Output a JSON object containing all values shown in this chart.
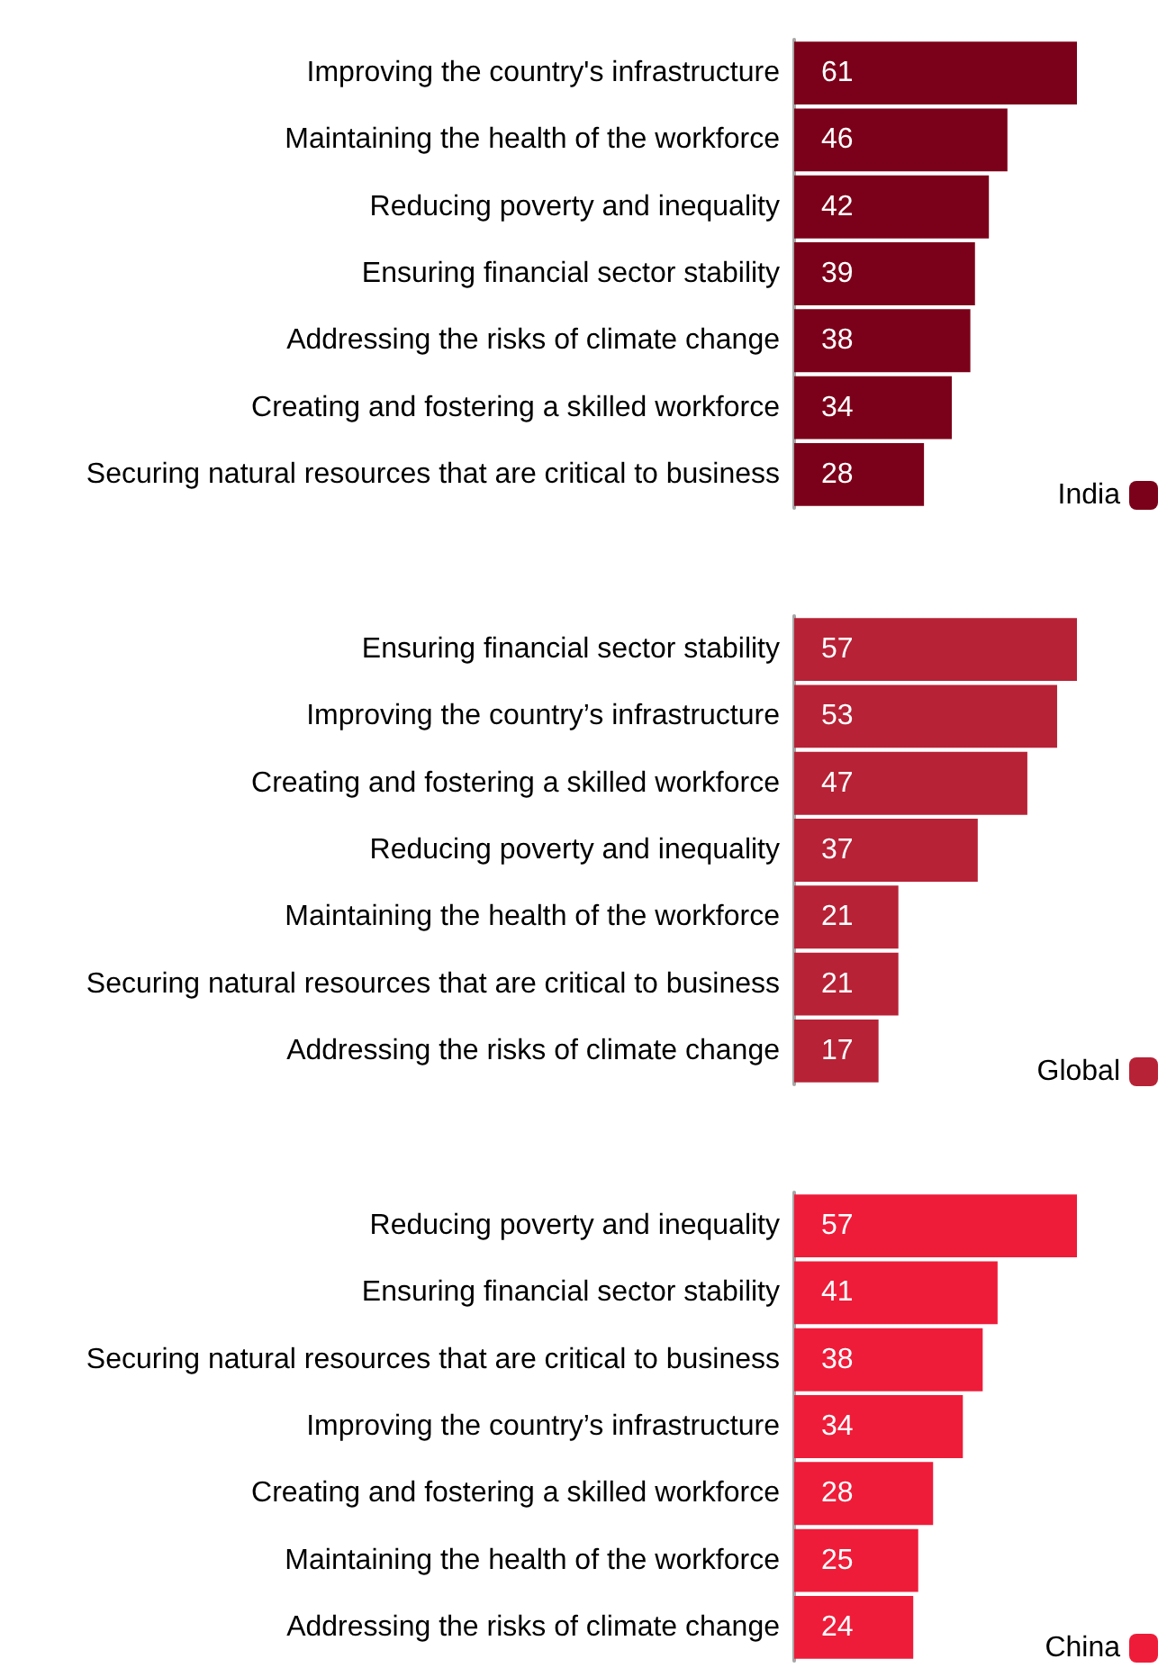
{
  "chart_data": [
    {
      "type": "bar",
      "orientation": "horizontal",
      "categories": [
        "Improving the country's infrastructure",
        "Maintaining the health of the workforce",
        "Reducing poverty and inequality",
        "Ensuring financial sector stability",
        "Addressing the risks of climate change",
        "Creating and fostering a skilled workforce",
        "Securing natural resources that are critical to business"
      ],
      "series": [
        {
          "name": "India",
          "color": "#7b0019",
          "values": [
            61,
            46,
            42,
            39,
            38,
            34,
            28
          ]
        }
      ],
      "data_labels": true,
      "legend": "bottom right"
    },
    {
      "type": "bar",
      "orientation": "horizontal",
      "categories": [
        "Ensuring financial sector stability",
        "Improving the country’s infrastructure",
        "Creating and fostering a skilled workforce",
        "Reducing poverty and inequality",
        "Maintaining the health of the workforce",
        "Securing natural resources that are critical to business",
        "Addressing the risks of climate change"
      ],
      "series": [
        {
          "name": "Global",
          "color": "#b72236",
          "values": [
            57,
            53,
            47,
            37,
            21,
            21,
            17
          ]
        }
      ],
      "data_labels": true,
      "legend": "bottom right"
    },
    {
      "type": "bar",
      "orientation": "horizontal",
      "categories": [
        "Reducing poverty and inequality",
        "Ensuring financial sector stability",
        "Securing natural resources that are critical to business",
        "Improving the country’s infrastructure",
        "Creating and fostering a skilled workforce",
        "Maintaining the health of the workforce",
        "Addressing the risks of climate change"
      ],
      "series": [
        {
          "name": "China",
          "color": "#ee1c39",
          "values": [
            57,
            41,
            38,
            34,
            28,
            25,
            24
          ]
        }
      ],
      "data_labels": true,
      "legend": "bottom right"
    }
  ]
}
